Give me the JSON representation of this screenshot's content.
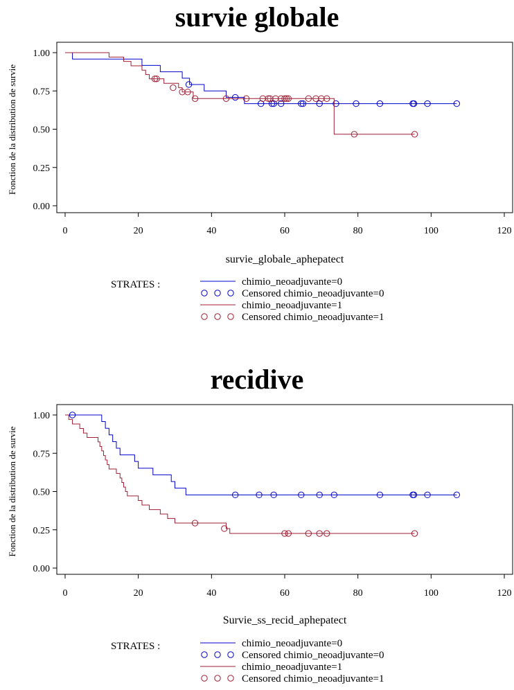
{
  "charts": [
    {
      "title": "survie globale",
      "xlabel": "survie_globale_aphepatect",
      "ylabel": "Fonction de la distribution de survie",
      "legend_heading": "STRATES :",
      "legend": [
        "chimio_neoadjuvante=0",
        "Censored chimio_neoadjuvante=0",
        "chimio_neoadjuvante=1",
        "Censored chimio_neoadjuvante=1"
      ]
    },
    {
      "title": "recidive",
      "xlabel": "Survie_ss_recid_aphepatect",
      "ylabel": "Fonction de la distribution de survie",
      "legend_heading": "STRATES :",
      "legend": [
        "chimio_neoadjuvante=0",
        "Censored chimio_neoadjuvante=0",
        "chimio_neoadjuvante=1",
        "Censored chimio_neoadjuvante=1"
      ]
    }
  ],
  "chart_data": [
    {
      "type": "line",
      "title": "survie globale",
      "xlabel": "survie_globale_aphepatect",
      "ylabel": "Fonction de la distribution de survie",
      "xlim": [
        0,
        120
      ],
      "ylim": [
        0,
        1
      ],
      "xticks": [
        0,
        20,
        40,
        60,
        80,
        100,
        120
      ],
      "yticks": [
        "0.00",
        "0.25",
        "0.50",
        "0.75",
        "1.00"
      ],
      "grid": false,
      "legend_position": "below",
      "series": [
        {
          "name": "chimio_neoadjuvante=0",
          "color": "#0000cc",
          "steps": [
            [
              0,
              1.0
            ],
            [
              2,
              0.958
            ],
            [
              21,
              0.917
            ],
            [
              26,
              0.875
            ],
            [
              32,
              0.833
            ],
            [
              34,
              0.792
            ],
            [
              38,
              0.75
            ],
            [
              44,
              0.708
            ],
            [
              49,
              0.667
            ],
            [
              107,
              0.667
            ]
          ],
          "censored": [
            [
              33.8,
              0.792
            ],
            [
              46.5,
              0.708
            ],
            [
              53.5,
              0.667
            ],
            [
              56.5,
              0.667
            ],
            [
              57,
              0.667
            ],
            [
              59,
              0.667
            ],
            [
              64.5,
              0.667
            ],
            [
              65,
              0.667
            ],
            [
              69.5,
              0.667
            ],
            [
              74,
              0.667
            ],
            [
              79.5,
              0.667
            ],
            [
              86,
              0.667
            ],
            [
              95,
              0.667
            ],
            [
              95.3,
              0.667
            ],
            [
              99,
              0.667
            ],
            [
              107,
              0.667
            ]
          ]
        },
        {
          "name": "chimio_neoadjuvante=1",
          "color": "#a01c32",
          "steps": [
            [
              0,
              1.0
            ],
            [
              12,
              0.971
            ],
            [
              16,
              0.943
            ],
            [
              18,
              0.914
            ],
            [
              21,
              0.886
            ],
            [
              22,
              0.857
            ],
            [
              23,
              0.829
            ],
            [
              27,
              0.8
            ],
            [
              31,
              0.771
            ],
            [
              32,
              0.743
            ],
            [
              35,
              0.7
            ],
            [
              73.5,
              0.7
            ],
            [
              73.5,
              0.467
            ],
            [
              95.5,
              0.467
            ]
          ],
          "censored": [
            [
              24.5,
              0.829
            ],
            [
              25,
              0.829
            ],
            [
              29.5,
              0.771
            ],
            [
              32,
              0.743
            ],
            [
              33.5,
              0.743
            ],
            [
              35.5,
              0.7
            ],
            [
              44,
              0.7
            ],
            [
              49.5,
              0.7
            ],
            [
              54,
              0.7
            ],
            [
              55.5,
              0.7
            ],
            [
              56,
              0.7
            ],
            [
              57.5,
              0.7
            ],
            [
              59,
              0.7
            ],
            [
              60,
              0.7
            ],
            [
              60.5,
              0.7
            ],
            [
              61,
              0.7
            ],
            [
              66.5,
              0.7
            ],
            [
              68.5,
              0.7
            ],
            [
              70,
              0.7
            ],
            [
              71.5,
              0.7
            ],
            [
              79,
              0.467
            ],
            [
              95.5,
              0.467
            ]
          ]
        }
      ]
    },
    {
      "type": "line",
      "title": "recidive",
      "xlabel": "Survie_ss_recid_aphepatect",
      "ylabel": "Fonction de la distribution de survie",
      "xlim": [
        0,
        120
      ],
      "ylim": [
        0,
        1
      ],
      "xticks": [
        0,
        20,
        40,
        60,
        80,
        100,
        120
      ],
      "yticks": [
        "0.00",
        "0.25",
        "0.50",
        "0.75",
        "1.00"
      ],
      "grid": false,
      "legend_position": "below",
      "series": [
        {
          "name": "chimio_neoadjuvante=0",
          "color": "#0000cc",
          "steps": [
            [
              0,
              1.0
            ],
            [
              10,
              0.957
            ],
            [
              11,
              0.913
            ],
            [
              12,
              0.87
            ],
            [
              13,
              0.826
            ],
            [
              14,
              0.783
            ],
            [
              15,
              0.739
            ],
            [
              19,
              0.696
            ],
            [
              20,
              0.652
            ],
            [
              24,
              0.609
            ],
            [
              29,
              0.565
            ],
            [
              30,
              0.522
            ],
            [
              33,
              0.478
            ],
            [
              107,
              0.478
            ]
          ],
          "censored": [
            [
              2,
              1.0
            ],
            [
              46.5,
              0.478
            ],
            [
              53,
              0.478
            ],
            [
              57,
              0.478
            ],
            [
              64.5,
              0.478
            ],
            [
              69.5,
              0.478
            ],
            [
              73.5,
              0.478
            ],
            [
              86,
              0.478
            ],
            [
              95,
              0.478
            ],
            [
              95.3,
              0.478
            ],
            [
              99,
              0.478
            ],
            [
              107,
              0.478
            ]
          ]
        },
        {
          "name": "chimio_neoadjuvante=1",
          "color": "#a01c32",
          "steps": [
            [
              0,
              1.0
            ],
            [
              1,
              0.971
            ],
            [
              2,
              0.941
            ],
            [
              4,
              0.912
            ],
            [
              5,
              0.882
            ],
            [
              6,
              0.853
            ],
            [
              9,
              0.824
            ],
            [
              9.5,
              0.794
            ],
            [
              10,
              0.765
            ],
            [
              10.5,
              0.735
            ],
            [
              11,
              0.706
            ],
            [
              11.5,
              0.676
            ],
            [
              12,
              0.647
            ],
            [
              14,
              0.618
            ],
            [
              15,
              0.588
            ],
            [
              15.5,
              0.559
            ],
            [
              16,
              0.529
            ],
            [
              16.5,
              0.5
            ],
            [
              17,
              0.471
            ],
            [
              20,
              0.441
            ],
            [
              21,
              0.412
            ],
            [
              23,
              0.382
            ],
            [
              26,
              0.353
            ],
            [
              28,
              0.324
            ],
            [
              30,
              0.294
            ],
            [
              35,
              0.294
            ],
            [
              44,
              0.258
            ],
            [
              45,
              0.226
            ],
            [
              95.5,
              0.226
            ]
          ],
          "censored": [
            [
              35.5,
              0.294
            ],
            [
              43.5,
              0.258
            ],
            [
              60,
              0.226
            ],
            [
              61,
              0.226
            ],
            [
              66.5,
              0.226
            ],
            [
              69.5,
              0.226
            ],
            [
              71.5,
              0.226
            ],
            [
              95.5,
              0.226
            ]
          ]
        }
      ]
    }
  ]
}
